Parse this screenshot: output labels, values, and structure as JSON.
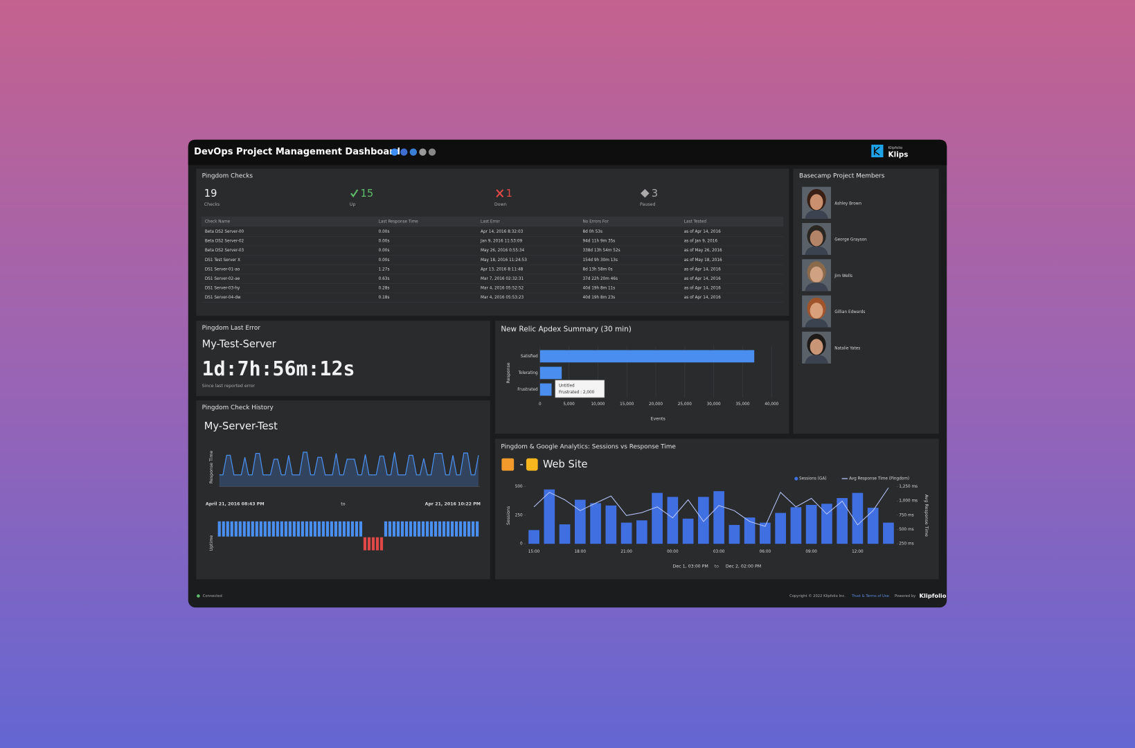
{
  "header": {
    "title": "DevOps Project Management Dashboard",
    "brand_small": "Klipfolio",
    "brand": "Klips"
  },
  "pingdom_checks": {
    "title": "Pingdom Checks",
    "stats": [
      {
        "value": 19,
        "label": "Checks"
      },
      {
        "value": 15,
        "label": "Up"
      },
      {
        "value": 1,
        "label": "Down"
      },
      {
        "value": 3,
        "label": "Paused"
      }
    ],
    "table": {
      "columns": [
        "Check Name",
        "Last Response Time",
        "Last Error",
        "No Errors For",
        "Last Tested"
      ],
      "rows": [
        [
          "Beta DS2 Server-00",
          "0.00s",
          "Apr 14, 2016 8:32:03",
          "8d 0h 53s",
          "as of Apr 14, 2016"
        ],
        [
          "Beta DS2 Server-02",
          "0.00s",
          "Jan 9, 2016 11:53:09",
          "94d 11h 9m 35s",
          "as of Jan 9, 2016"
        ],
        [
          "Beta DS2 Server-03",
          "0.00s",
          "May 26, 2016 0:55:34",
          "338d 13h 54m 52s",
          "as of May 26, 2016"
        ],
        [
          "DS1 Test Server X",
          "0.00s",
          "May 18, 2016 11:24:53",
          "154d 9h 30m 13s",
          "as of May 18, 2016"
        ],
        [
          "DS1 Server-01-ao",
          "1.27s",
          "Apr 13, 2016 8:11:48",
          "8d 13h 58m 0s",
          "as of Apr 14, 2016"
        ],
        [
          "DS1 Server-02-ae",
          "0.63s",
          "Mar 7, 2016 02:32:31",
          "37d 22h 20m 46s",
          "as of Apr 14, 2016"
        ],
        [
          "DS1 Server-03-hy",
          "0.28s",
          "Mar 4, 2016 05:52:52",
          "40d 19h 8m 11s",
          "as of Apr 14, 2016"
        ],
        [
          "DS1 Server-04-dw",
          "0.18s",
          "Mar 4, 2016 05:53:23",
          "40d 19h 8m 23s",
          "as of Apr 14, 2016"
        ]
      ]
    }
  },
  "members": {
    "title": "Basecamp Project Members",
    "people": [
      "Ashley Brown",
      "George Grayson",
      "Jim Wells",
      "Gillian Edwards",
      "Natalie Yates"
    ]
  },
  "last_error": {
    "title": "Pingdom Last Error",
    "server": "My-Test-Server",
    "duration": "1d:7h:56m:12s",
    "caption": "Since last reported error"
  },
  "check_history": {
    "title": "Pingdom Check History",
    "server": "My-Server-Test",
    "y_label": "Response Time",
    "start": "April 21, 2016 08:43 PM",
    "to": "to",
    "end": "Apr 21, 2016 10:22 PM",
    "uptime_label": "Uptime",
    "line_color": "#4a8ff0",
    "ylim": [
      0,
      100
    ],
    "response": [
      30,
      30,
      80,
      80,
      30,
      30,
      30,
      75,
      30,
      30,
      85,
      85,
      30,
      30,
      30,
      70,
      70,
      30,
      30,
      80,
      30,
      30,
      30,
      88,
      88,
      30,
      30,
      75,
      75,
      30,
      30,
      30,
      85,
      30,
      30,
      70,
      70,
      70,
      30,
      30,
      82,
      30,
      30,
      30,
      78,
      78,
      30,
      30,
      88,
      30,
      30,
      30,
      80,
      80,
      30,
      30,
      72,
      30,
      30,
      85,
      85,
      85,
      30,
      30,
      80,
      30,
      30,
      86,
      86,
      30,
      30,
      80
    ],
    "up_color": "#4a8ff0",
    "down_color": "#e04848",
    "uptime": [
      1,
      1,
      1,
      1,
      1,
      1,
      1,
      1,
      1,
      1,
      1,
      1,
      1,
      1,
      1,
      1,
      1,
      1,
      1,
      1,
      1,
      1,
      1,
      1,
      1,
      1,
      1,
      1,
      1,
      1,
      1,
      1,
      1,
      1,
      1,
      0,
      0,
      0,
      0,
      0,
      1,
      1,
      1,
      1,
      1,
      1,
      1,
      1,
      1,
      1,
      1,
      1,
      1,
      1,
      1,
      1,
      1,
      1,
      1,
      1,
      1,
      1,
      1
    ]
  },
  "apdex": {
    "type": "bar",
    "title": "New Relic Apdex Summary (30 min)",
    "categories": [
      "Satisfied",
      "Tolerating",
      "Frustrated"
    ],
    "values": [
      37000,
      3750,
      2000
    ],
    "color": "#4a8ff0",
    "xlim": [
      0,
      40000
    ],
    "xticks": [
      0,
      {
        "value": 5000,
        "label": "5,000"
      },
      {
        "value": 10000,
        "label": "10,000"
      },
      {
        "value": 15000,
        "label": "15,000"
      },
      {
        "value": 20000,
        "label": "20,000"
      },
      {
        "value": 25000,
        "label": "25,000"
      },
      {
        "value": 30000,
        "label": "30,000"
      },
      {
        "value": 35000,
        "label": "35,000"
      },
      {
        "value": 40000,
        "label": "40,000"
      }
    ],
    "xlabel": "Events",
    "ylabel": "Response",
    "grid": true,
    "tooltip": {
      "series": "Untitled",
      "text": "Frustrated : 2,000"
    }
  },
  "sessions": {
    "type": "bar",
    "title": "Pingdom & Google Analytics: Sessions vs Response Time",
    "site": "Web Site",
    "categories": [
      "15:00",
      null,
      null,
      "18:00",
      null,
      null,
      "21:00",
      null,
      null,
      "00:00",
      null,
      null,
      "03:00",
      null,
      null,
      "06:00",
      null,
      null,
      "09:00",
      null,
      null,
      "12:00",
      null,
      null
    ],
    "series": [
      {
        "name": "Sessions (GA)",
        "color": "#3f6fe0",
        "values": [
          120,
          475,
          170,
          385,
          355,
          335,
          185,
          205,
          445,
          410,
          220,
          410,
          460,
          165,
          230,
          185,
          270,
          320,
          340,
          350,
          400,
          445,
          315,
          185
        ]
      },
      {
        "name": "Avg Response Time (Pingdom)",
        "color": "#b9c8ff",
        "axis": "y2",
        "values": [
          895,
          1150,
          1020,
          830,
          960,
          1085,
          745,
          795,
          895,
          705,
          1020,
          640,
          920,
          830,
          640,
          555,
          1150,
          895,
          1045,
          770,
          995,
          580,
          830,
          1230
        ]
      }
    ],
    "ylim": [
      0,
      500
    ],
    "yticks": [
      0,
      250,
      500
    ],
    "ylabel": "Sessions",
    "y2lim": [
      250,
      1250
    ],
    "y2ticks": [
      {
        "value": 250,
        "label": "250 ms"
      },
      {
        "value": 500,
        "label": "500 ms"
      },
      {
        "value": 750,
        "label": "750 ms"
      },
      {
        "value": 1000,
        "label": "1,000 ms"
      },
      {
        "value": 1250,
        "label": "1,250 ms"
      }
    ],
    "y2label": "Avg Response Time",
    "range_start": "Dec 1, 03:00 PM",
    "range_to": "to",
    "range_end": "Dec 2, 02:00 PM"
  },
  "footer": {
    "status": "Connected",
    "copyright": "Copyright © 2022 Klipfolio Inc.",
    "terms": "Trust & Terms of Use",
    "powered": "Powered by",
    "brand": "Klipfolio"
  }
}
